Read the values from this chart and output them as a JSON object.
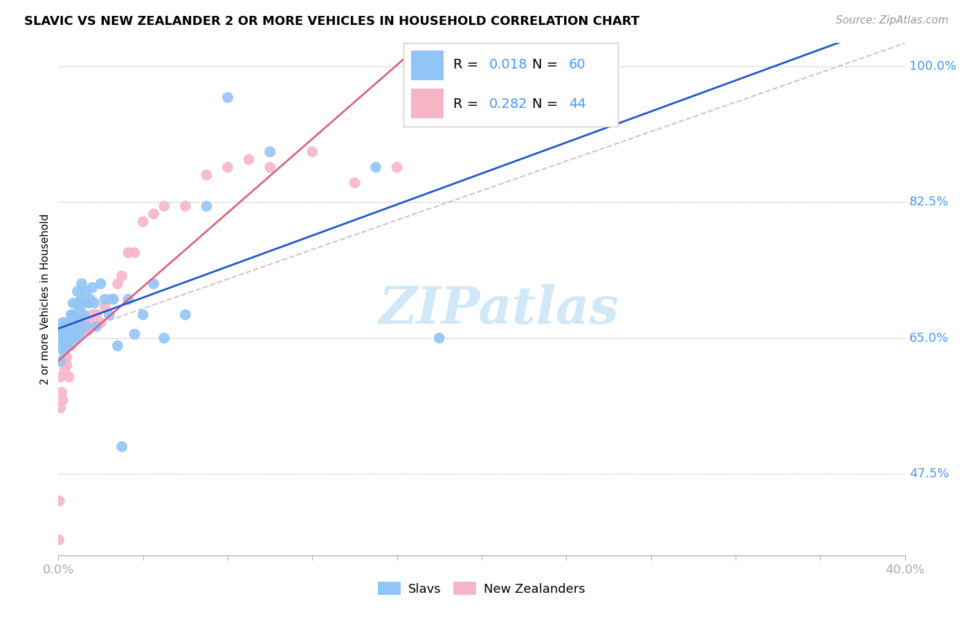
{
  "title": "SLAVIC VS NEW ZEALANDER 2 OR MORE VEHICLES IN HOUSEHOLD CORRELATION CHART",
  "source": "Source: ZipAtlas.com",
  "ylabel": "2 or more Vehicles in Household",
  "slavs_R": "0.018",
  "slavs_N": "60",
  "nz_R": "0.282",
  "nz_N": "44",
  "slavs_color": "#92c5f7",
  "nz_color": "#f7b6c8",
  "slavs_line_color": "#2255cc",
  "nz_line_color": "#e06080",
  "diagonal_color": "#d4b0b0",
  "watermark": "ZIPatlas",
  "slavs_x": [
    0.0005,
    0.001,
    0.001,
    0.0015,
    0.002,
    0.002,
    0.002,
    0.003,
    0.003,
    0.003,
    0.003,
    0.004,
    0.004,
    0.004,
    0.005,
    0.005,
    0.005,
    0.006,
    0.006,
    0.006,
    0.007,
    0.007,
    0.007,
    0.007,
    0.008,
    0.008,
    0.008,
    0.009,
    0.009,
    0.01,
    0.01,
    0.01,
    0.011,
    0.011,
    0.012,
    0.012,
    0.013,
    0.013,
    0.014,
    0.015,
    0.016,
    0.017,
    0.018,
    0.02,
    0.022,
    0.024,
    0.026,
    0.028,
    0.03,
    0.033,
    0.036,
    0.04,
    0.045,
    0.05,
    0.06,
    0.07,
    0.08,
    0.1,
    0.15,
    0.18
  ],
  "slavs_y": [
    0.66,
    0.64,
    0.62,
    0.655,
    0.65,
    0.635,
    0.67,
    0.645,
    0.66,
    0.65,
    0.665,
    0.64,
    0.655,
    0.67,
    0.645,
    0.66,
    0.65,
    0.66,
    0.67,
    0.68,
    0.65,
    0.665,
    0.68,
    0.695,
    0.65,
    0.665,
    0.68,
    0.695,
    0.71,
    0.655,
    0.67,
    0.685,
    0.7,
    0.72,
    0.695,
    0.68,
    0.665,
    0.71,
    0.695,
    0.7,
    0.715,
    0.695,
    0.665,
    0.72,
    0.7,
    0.68,
    0.7,
    0.64,
    0.51,
    0.7,
    0.655,
    0.68,
    0.72,
    0.65,
    0.68,
    0.82,
    0.96,
    0.89,
    0.87,
    0.65
  ],
  "nz_x": [
    0.0003,
    0.0005,
    0.001,
    0.001,
    0.0015,
    0.002,
    0.002,
    0.003,
    0.003,
    0.004,
    0.004,
    0.005,
    0.005,
    0.006,
    0.006,
    0.007,
    0.008,
    0.009,
    0.01,
    0.011,
    0.012,
    0.013,
    0.014,
    0.015,
    0.016,
    0.018,
    0.02,
    0.022,
    0.025,
    0.028,
    0.03,
    0.033,
    0.036,
    0.04,
    0.045,
    0.05,
    0.06,
    0.07,
    0.08,
    0.09,
    0.1,
    0.12,
    0.14,
    0.16
  ],
  "nz_y": [
    0.39,
    0.44,
    0.56,
    0.6,
    0.58,
    0.62,
    0.57,
    0.63,
    0.61,
    0.625,
    0.615,
    0.645,
    0.6,
    0.64,
    0.66,
    0.65,
    0.66,
    0.655,
    0.67,
    0.665,
    0.66,
    0.675,
    0.66,
    0.67,
    0.68,
    0.68,
    0.67,
    0.69,
    0.7,
    0.72,
    0.73,
    0.76,
    0.76,
    0.8,
    0.81,
    0.82,
    0.82,
    0.86,
    0.87,
    0.88,
    0.87,
    0.89,
    0.85,
    0.87
  ],
  "xmin": 0.0,
  "xmax": 0.4,
  "ymin": 0.37,
  "ymax": 1.03,
  "ytick_vals": [
    1.0,
    0.825,
    0.65,
    0.475
  ],
  "ytick_labels": [
    "100.0%",
    "82.5%",
    "65.0%",
    "47.5%"
  ],
  "xtick_count": 11,
  "xlabel_color": "#000000",
  "ylabel_color": "#000000",
  "right_label_color": "#4499ff",
  "grid_color": "#cccccc",
  "title_fontsize": 13,
  "source_fontsize": 11,
  "tick_fontsize": 13,
  "legend_fontsize": 14,
  "watermark_fontsize": 54,
  "watermark_color": "#d0e8f8",
  "legend_box_color": "#cccccc"
}
